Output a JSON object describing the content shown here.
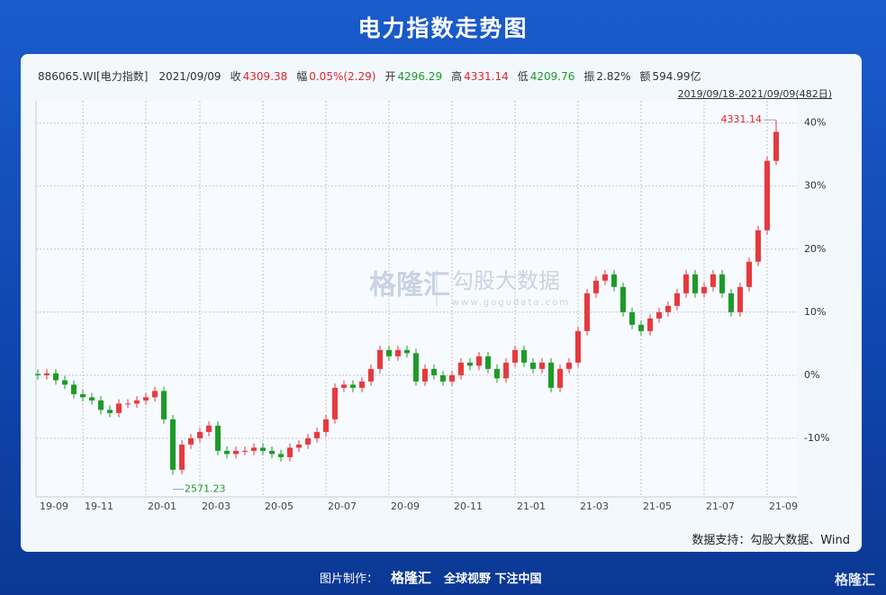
{
  "title": "电力指数走势图",
  "info": [
    {
      "label": "886065.WI[电力指数]",
      "value": "2021/09/09",
      "color": "#333333"
    },
    {
      "label": "收",
      "value": "4309.38",
      "color": "#e0262c"
    },
    {
      "label": "幅",
      "value": "0.05%(2.29)",
      "color": "#e0262c"
    },
    {
      "label": "开",
      "value": "4296.29",
      "color": "#1f9a2a"
    },
    {
      "label": "高",
      "value": "4331.14",
      "color": "#e0262c"
    },
    {
      "label": "低",
      "value": "4209.76",
      "color": "#1f9a2a"
    },
    {
      "label": "振",
      "value": "2.82%",
      "color": "#333333"
    },
    {
      "label": "额",
      "value": "594.99亿",
      "color": "#333333"
    }
  ],
  "range_label": "2019/09/18-2021/09/09(482日)",
  "watermark": {
    "brand": "格隆汇",
    "data_brand": "勾股大数据",
    "url": "www.gogudata.com"
  },
  "chart_data": {
    "type": "candlestick",
    "categories": [
      "19-09",
      null,
      null,
      null,
      null,
      "19-11",
      null,
      null,
      null,
      null,
      null,
      null,
      "20-01",
      null,
      null,
      null,
      null,
      null,
      "20-03",
      null,
      null,
      null,
      null,
      null,
      null,
      "20-05",
      null,
      null,
      null,
      null,
      null,
      null,
      "20-07",
      null,
      null,
      null,
      null,
      null,
      null,
      "20-09",
      null,
      null,
      null,
      null,
      null,
      null,
      "20-11",
      null,
      null,
      null,
      null,
      null,
      null,
      "21-01",
      null,
      null,
      null,
      null,
      null,
      null,
      "21-03",
      null,
      null,
      null,
      null,
      null,
      null,
      "21-05",
      null,
      null,
      null,
      null,
      null,
      null,
      "21-07",
      null,
      null,
      null,
      null,
      null,
      null,
      "21-09",
      null
    ],
    "open": [
      0.2,
      0,
      0.3,
      -0.8,
      -1.5,
      -3,
      -3.5,
      -4,
      -5.5,
      -6,
      -4.5,
      -4.5,
      -4,
      -3.5,
      -2.5,
      -7,
      -15,
      -11,
      -10,
      -9,
      -8,
      -12,
      -12.5,
      -12,
      -12,
      -11.5,
      -12,
      -12.5,
      -13,
      -11.5,
      -11,
      -10,
      -9,
      -7,
      -2,
      -1.5,
      -2,
      -1,
      1,
      4,
      3,
      4,
      3.5,
      -1,
      1,
      0,
      -1,
      0,
      2,
      1.5,
      3,
      1,
      -0.5,
      2,
      4,
      2,
      1,
      2,
      -2,
      1,
      2,
      7,
      13,
      15,
      16,
      14,
      10,
      8,
      7,
      9,
      10,
      11,
      13,
      16,
      13,
      14,
      16,
      13,
      10,
      14,
      18,
      23,
      34
    ],
    "high": [
      0.9,
      1,
      1,
      -0.1,
      -0.8,
      -2.3,
      -2.8,
      -3.3,
      -4.8,
      -3.8,
      -3.8,
      -3.3,
      -2.8,
      -1.8,
      -1.8,
      -6.3,
      -10.3,
      -9.3,
      -8.3,
      -7.3,
      -7.3,
      -11.3,
      -11.3,
      -11.3,
      -10.8,
      -10.8,
      -11.3,
      -11.8,
      -10.8,
      -10.3,
      -9.3,
      -8.3,
      -6.3,
      -1.3,
      -0.8,
      -0.8,
      -0.3,
      1.7,
      4.7,
      4.7,
      4.7,
      4.7,
      4.2,
      1.7,
      1.7,
      0.7,
      0.7,
      2.7,
      2.7,
      3.7,
      3.7,
      1.7,
      2.7,
      4.7,
      4.7,
      2.7,
      2.7,
      2.7,
      1.7,
      2.7,
      7.7,
      13.7,
      15.7,
      16.7,
      16.7,
      14.7,
      10.7,
      8.7,
      9.7,
      10.7,
      11.7,
      13.7,
      16.7,
      16.7,
      14.7,
      16.7,
      16.7,
      13.7,
      14.7,
      18.7,
      23.7,
      34.7,
      40.5
    ],
    "low": [
      -0.7,
      -0.7,
      -1.5,
      -2.2,
      -3.7,
      -4.2,
      -4.7,
      -6.2,
      -6.7,
      -6.7,
      -5.2,
      -5.2,
      -4.7,
      -4.2,
      -7.7,
      -15.8,
      -15.7,
      -11.7,
      -10.7,
      -9.7,
      -12.7,
      -13.2,
      -13.2,
      -12.7,
      -12.7,
      -12.7,
      -13.2,
      -13.7,
      -13.7,
      -12.2,
      -11.7,
      -10.7,
      -9.7,
      -7.7,
      -2.7,
      -2.7,
      -2.7,
      -1.7,
      0.3,
      2.3,
      2.3,
      2.8,
      -1.7,
      -1.7,
      -0.7,
      -1.7,
      -1.7,
      -0.7,
      0.8,
      0.8,
      0.3,
      -1.2,
      -1.2,
      1.3,
      1.3,
      0.3,
      0.3,
      -2.7,
      -2.7,
      0.3,
      1.3,
      6.3,
      12.3,
      14.3,
      13.3,
      9.3,
      7.3,
      6.3,
      6.3,
      8.3,
      9.3,
      10.3,
      12.3,
      12.3,
      12.3,
      13.3,
      12.3,
      9.3,
      9.3,
      13.3,
      17.3,
      22.3,
      33.3
    ],
    "close": [
      0,
      0.3,
      -0.8,
      -1.5,
      -3,
      -3.5,
      -4,
      -5.5,
      -6,
      -4.5,
      -4.5,
      -4,
      -3.5,
      -2.5,
      -7,
      -15,
      -11,
      -10,
      -9,
      -8,
      -12,
      -12.5,
      -12,
      -12,
      -11.5,
      -12,
      -12.5,
      -13,
      -11.5,
      -11,
      -10,
      -9,
      -7,
      -2,
      -1.5,
      -2,
      -1,
      1,
      4,
      3,
      4,
      3.5,
      -1,
      1,
      0,
      -1,
      0,
      2,
      1.5,
      3,
      1,
      -0.5,
      2,
      4,
      2,
      1,
      2,
      -2,
      1,
      2,
      7,
      13,
      15,
      16,
      14,
      10,
      8,
      7,
      9,
      10,
      11,
      13,
      16,
      13,
      14,
      16,
      13,
      10,
      14,
      18,
      23,
      34,
      38.6
    ],
    "up_color": "#e53a3f",
    "down_color": "#1f9a2a",
    "ylim": [
      -19.3,
      43.1
    ],
    "yticks": [
      {
        "value": -10,
        "label": "-10%"
      },
      {
        "value": 0,
        "label": "0%"
      },
      {
        "value": 10,
        "label": "10%"
      },
      {
        "value": 20,
        "label": "20%"
      },
      {
        "value": 30,
        "label": "30%"
      },
      {
        "value": 40,
        "label": "40%"
      }
    ],
    "grid": true,
    "annotations": [
      "4331.14",
      "2571.23"
    ]
  },
  "source": "数据支持：勾股大数据、Wind",
  "footer": {
    "made_by": "图片制作：",
    "brand": "格隆汇",
    "slogan": "全球视野 下注中国"
  },
  "corner_brand": "格隆汇"
}
